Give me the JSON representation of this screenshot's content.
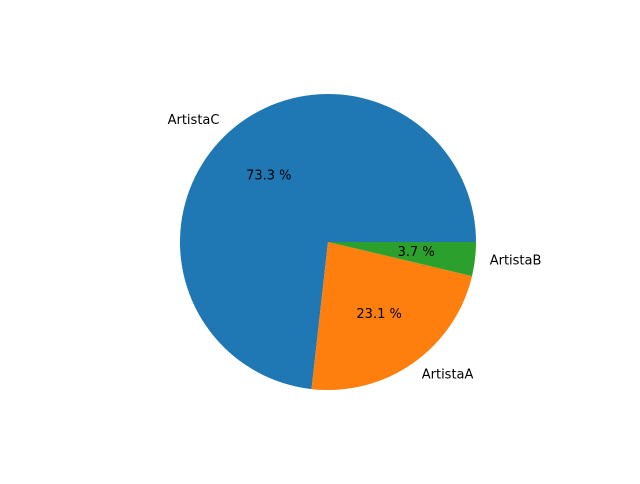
{
  "chart_data": {
    "type": "pie",
    "title": "",
    "slices": [
      {
        "label": "ArtistaC",
        "value": 73.3,
        "pct_label": "73.3 %",
        "color": "#1f77b4"
      },
      {
        "label": "ArtistaA",
        "value": 23.1,
        "pct_label": "23.1 %",
        "color": "#ff7f0e"
      },
      {
        "label": "ArtistaB",
        "value": 3.7,
        "pct_label": "3.7 %",
        "color": "#2ca02c"
      }
    ],
    "start_angle_deg": 0,
    "direction": "counterclockwise",
    "legend": "none"
  }
}
